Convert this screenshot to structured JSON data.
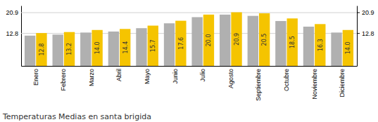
{
  "chart_data": {
    "type": "bar",
    "title": "Temperaturas Medias en santa brigida",
    "categories": [
      "Enero",
      "Febrero",
      "Marzo",
      "Abril",
      "Mayo",
      "Junio",
      "Julio",
      "Agosto",
      "Septiembre",
      "Octubre",
      "Noviembre",
      "Diciembre"
    ],
    "series": [
      {
        "color": "#B0B0B0",
        "values": [
          11.8,
          12.2,
          13.0,
          13.4,
          14.7,
          16.6,
          19.0,
          20.0,
          19.5,
          17.5,
          15.3,
          13.0
        ]
      },
      {
        "color": "#F5C400",
        "values": [
          12.8,
          13.2,
          14.0,
          14.4,
          15.7,
          17.6,
          20.0,
          20.9,
          20.5,
          18.5,
          16.3,
          14.0
        ],
        "value_labels": [
          "12.8",
          "13.2",
          "14.0",
          "14.4",
          "15.7",
          "17.6",
          "20.0",
          "20.9",
          "20.5",
          "18.5",
          "16.3",
          "14.0"
        ],
        "data_labels": true
      }
    ],
    "ylim": [
      0,
      23.5
    ],
    "yticks": [
      12.8,
      20.9
    ],
    "y2lim": [
      0,
      23.5
    ],
    "y2ticks": [
      12.8,
      20.9
    ],
    "grid": true
  }
}
